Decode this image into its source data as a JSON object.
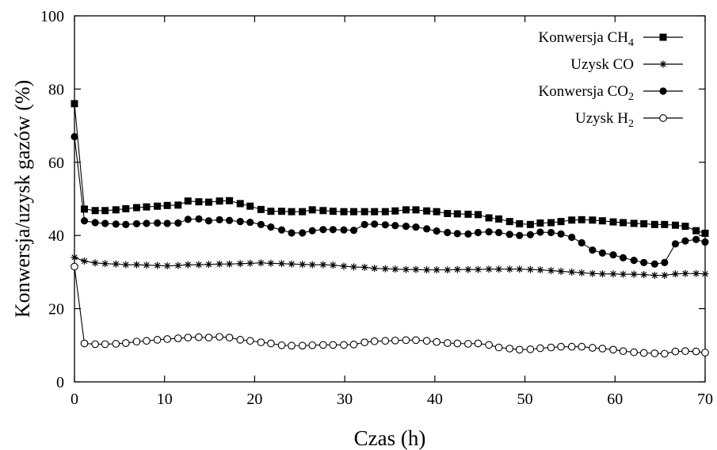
{
  "chart_data": {
    "type": "line",
    "xlabel": "Czas (h)",
    "ylabel": "Konwersja/uzysk gazów (%)",
    "xlim": [
      0,
      70
    ],
    "ylim": [
      0,
      100
    ],
    "x_ticks": [
      "0",
      "10",
      "20",
      "30",
      "40",
      "50",
      "60",
      "70"
    ],
    "y_ticks": [
      "0",
      "20",
      "40",
      "60",
      "80",
      "100"
    ],
    "grid": false,
    "legend_position": "top-right",
    "x": [
      0,
      1.1,
      2.3,
      3.4,
      4.6,
      5.7,
      6.9,
      8.0,
      9.2,
      10.3,
      11.5,
      12.6,
      13.8,
      14.9,
      16.1,
      17.2,
      18.4,
      19.5,
      20.7,
      21.8,
      23.0,
      24.1,
      25.3,
      26.4,
      27.6,
      28.7,
      29.9,
      31.0,
      32.2,
      33.3,
      34.5,
      35.6,
      36.8,
      37.9,
      39.1,
      40.2,
      41.4,
      42.5,
      43.7,
      44.8,
      46.0,
      47.1,
      48.3,
      49.4,
      50.6,
      51.7,
      52.9,
      54.0,
      55.2,
      56.3,
      57.5,
      58.6,
      59.8,
      60.9,
      62.1,
      63.2,
      64.4,
      65.5,
      66.7,
      67.8,
      69.0,
      70.0
    ],
    "series": [
      {
        "name_main": "Konwersja CH",
        "name_sub": "4",
        "marker": "filled-square",
        "values": [
          76,
          47.2,
          46.8,
          46.8,
          47,
          47.3,
          47.6,
          47.8,
          48,
          48.2,
          48.3,
          49.4,
          49.2,
          49.1,
          49.4,
          49.5,
          48.7,
          48,
          47.1,
          46.6,
          46.6,
          46.5,
          46.5,
          47,
          46.8,
          46.6,
          46.5,
          46.5,
          46.5,
          46.5,
          46.5,
          46.7,
          47,
          47,
          46.7,
          46.5,
          46,
          45.9,
          45.8,
          45.7,
          44.8,
          44.5,
          43.8,
          43.2,
          43,
          43.4,
          43.5,
          43.8,
          44.2,
          44.3,
          44.2,
          44,
          43.7,
          43.5,
          43.3,
          43.2,
          43,
          43,
          42.8,
          42.5,
          41.3,
          40.6
        ]
      },
      {
        "name_main": "Uzysk CO",
        "name_sub": "",
        "marker": "asterisk",
        "values": [
          34,
          33,
          32.5,
          32.3,
          32.2,
          32,
          32,
          31.9,
          31.8,
          31.7,
          31.8,
          32,
          32,
          32.1,
          32.2,
          32.2,
          32.3,
          32.4,
          32.5,
          32.4,
          32.3,
          32.2,
          32.1,
          32,
          32,
          31.9,
          31.6,
          31.4,
          31.3,
          31,
          30.9,
          30.8,
          30.7,
          30.7,
          30.6,
          30.6,
          30.6,
          30.7,
          30.7,
          30.7,
          30.8,
          30.8,
          30.8,
          30.8,
          30.7,
          30.6,
          30.4,
          30.2,
          30,
          29.8,
          29.6,
          29.5,
          29.5,
          29.4,
          29.4,
          29.3,
          29.1,
          29.1,
          29.5,
          29.6,
          29.6,
          29.5
        ]
      },
      {
        "name_main": "Konwersja CO",
        "name_sub": "2",
        "marker": "filled-circle",
        "values": [
          67,
          44,
          43.5,
          43.3,
          43.1,
          43,
          43.2,
          43.3,
          43.4,
          43.3,
          43.4,
          44.4,
          44.5,
          44,
          44.3,
          44.1,
          43.8,
          43.6,
          43,
          42.3,
          41.5,
          40.7,
          40.7,
          41.3,
          41.6,
          41.6,
          41.5,
          41.4,
          43,
          43.1,
          42.9,
          42.7,
          42.5,
          42.3,
          41.8,
          41.2,
          40.8,
          40.5,
          40.4,
          40.8,
          41,
          40.8,
          40.3,
          40,
          40.2,
          40.9,
          40.8,
          40.4,
          39.5,
          38,
          36,
          35.2,
          34.7,
          33.9,
          33.2,
          32.6,
          32.2,
          32.6,
          37.7,
          38.5,
          38.9,
          38.2
        ]
      },
      {
        "name_main": "Uzysk H",
        "name_sub": "2",
        "marker": "open-circle",
        "values": [
          31.5,
          10.5,
          10.3,
          10.3,
          10.4,
          10.6,
          11,
          11.2,
          11.5,
          11.7,
          11.9,
          12.1,
          12.2,
          12.1,
          12.3,
          12.1,
          11.5,
          11.2,
          10.8,
          10.5,
          10,
          9.9,
          9.9,
          10,
          10.1,
          10.1,
          10.1,
          10.2,
          10.8,
          11.1,
          11.2,
          11.3,
          11.4,
          11.4,
          11.2,
          10.9,
          10.6,
          10.5,
          10.4,
          10.5,
          10.1,
          9.4,
          9.1,
          8.8,
          8.9,
          9.2,
          9.4,
          9.6,
          9.6,
          9.6,
          9.3,
          9.1,
          8.8,
          8.4,
          8.1,
          7.9,
          7.8,
          7.7,
          8.3,
          8.4,
          8.3,
          8.0
        ]
      }
    ]
  }
}
